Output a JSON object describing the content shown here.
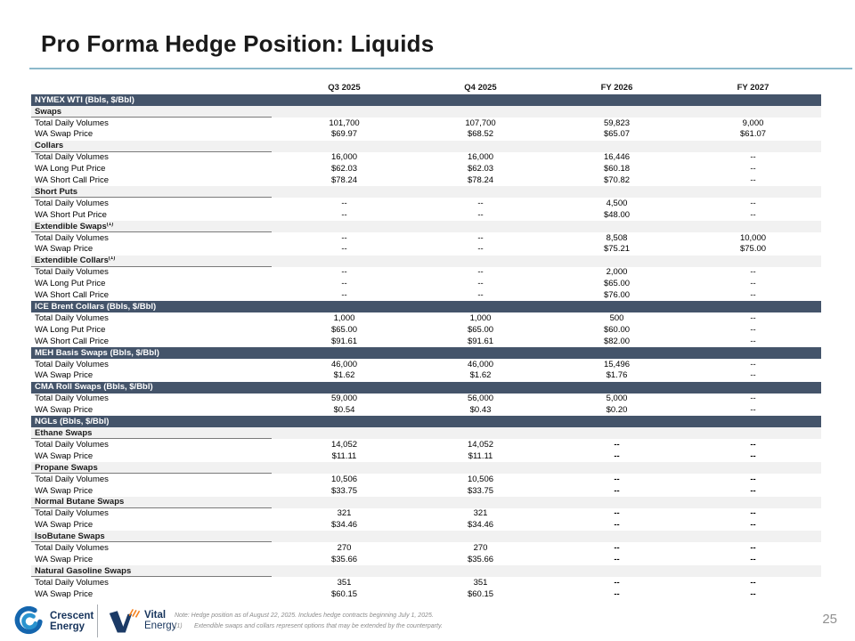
{
  "slide": {
    "title": "Pro Forma Hedge Position: Liquids",
    "page_number": "25",
    "accent_color": "#8cb9cb",
    "section_bar_color": "#44546A",
    "subheader_bg_color": "#f1f1f1"
  },
  "table": {
    "columns": [
      "Q3 2025",
      "Q4 2025",
      "FY 2026",
      "FY 2027"
    ],
    "rows": [
      {
        "type": "section",
        "label": "NYMEX WTI (Bbls, $/Bbl)"
      },
      {
        "type": "subheader",
        "label": "Swaps"
      },
      {
        "type": "data",
        "label": "Total Daily Volumes",
        "values": [
          "101,700",
          "107,700",
          "59,823",
          "9,000"
        ]
      },
      {
        "type": "data",
        "label": "WA Swap Price",
        "values": [
          "$69.97",
          "$68.52",
          "$65.07",
          "$61.07"
        ]
      },
      {
        "type": "subheader",
        "label": "Collars"
      },
      {
        "type": "data",
        "label": "Total Daily Volumes",
        "values": [
          "16,000",
          "16,000",
          "16,446",
          "--"
        ]
      },
      {
        "type": "data",
        "label": "WA Long Put Price",
        "values": [
          "$62.03",
          "$62.03",
          "$60.18",
          "--"
        ]
      },
      {
        "type": "data",
        "label": "WA Short Call Price",
        "values": [
          "$78.24",
          "$78.24",
          "$70.82",
          "--"
        ]
      },
      {
        "type": "subheader",
        "label": "Short Puts"
      },
      {
        "type": "data",
        "label": "Total Daily Volumes",
        "values": [
          "--",
          "--",
          "4,500",
          "--"
        ]
      },
      {
        "type": "data",
        "label": "WA Short Put Price",
        "values": [
          "--",
          "--",
          "$48.00",
          "--"
        ]
      },
      {
        "type": "subheader",
        "label": "Extendible Swaps",
        "sup": "(1)"
      },
      {
        "type": "data",
        "label": "Total Daily Volumes",
        "values": [
          "--",
          "--",
          "8,508",
          "10,000"
        ]
      },
      {
        "type": "data",
        "label": "WA Swap Price",
        "values": [
          "--",
          "--",
          "$75.21",
          "$75.00"
        ]
      },
      {
        "type": "subheader",
        "label": "Extendible Collars",
        "sup": "(1)"
      },
      {
        "type": "data",
        "label": "Total Daily Volumes",
        "values": [
          "--",
          "--",
          "2,000",
          "--"
        ]
      },
      {
        "type": "data",
        "label": "WA Long Put Price",
        "values": [
          "--",
          "--",
          "$65.00",
          "--"
        ]
      },
      {
        "type": "data",
        "label": "WA Short Call Price",
        "values": [
          "--",
          "--",
          "$76.00",
          "--"
        ]
      },
      {
        "type": "section",
        "label": "ICE Brent Collars (Bbls, $/Bbl)"
      },
      {
        "type": "data",
        "label": "Total Daily Volumes",
        "values": [
          "1,000",
          "1,000",
          "500",
          "--"
        ]
      },
      {
        "type": "data",
        "label": "WA Long Put Price",
        "values": [
          "$65.00",
          "$65.00",
          "$60.00",
          "--"
        ]
      },
      {
        "type": "data",
        "label": "WA Short Call Price",
        "values": [
          "$91.61",
          "$91.61",
          "$82.00",
          "--"
        ]
      },
      {
        "type": "section",
        "label": "MEH Basis Swaps (Bbls, $/Bbl)"
      },
      {
        "type": "data",
        "label": "Total Daily Volumes",
        "values": [
          "46,000",
          "46,000",
          "15,496",
          "--"
        ]
      },
      {
        "type": "data",
        "label": "WA Swap Price",
        "values": [
          "$1.62",
          "$1.62",
          "$1.76",
          "--"
        ]
      },
      {
        "type": "section",
        "label": "CMA Roll Swaps (Bbls, $/Bbl)"
      },
      {
        "type": "data",
        "label": "Total Daily Volumes",
        "values": [
          "59,000",
          "56,000",
          "5,000",
          "--"
        ]
      },
      {
        "type": "data",
        "label": "WA Swap Price",
        "values": [
          "$0.54",
          "$0.43",
          "$0.20",
          "--"
        ]
      },
      {
        "type": "section",
        "label": "NGLs (Bbls, $/Bbl)"
      },
      {
        "type": "subheader",
        "label": "Ethane Swaps"
      },
      {
        "type": "data",
        "label": "Total Daily Volumes",
        "values": [
          "14,052",
          "14,052",
          "--",
          "--"
        ],
        "bold_cols": [
          2,
          3
        ]
      },
      {
        "type": "data",
        "label": "WA Swap Price",
        "values": [
          "$11.11",
          "$11.11",
          "--",
          "--"
        ],
        "bold_cols": [
          2,
          3
        ]
      },
      {
        "type": "subheader",
        "label": "Propane Swaps"
      },
      {
        "type": "data",
        "label": "Total Daily Volumes",
        "values": [
          "10,506",
          "10,506",
          "--",
          "--"
        ],
        "bold_cols": [
          2,
          3
        ]
      },
      {
        "type": "data",
        "label": "WA Swap Price",
        "values": [
          "$33.75",
          "$33.75",
          "--",
          "--"
        ],
        "bold_cols": [
          2,
          3
        ]
      },
      {
        "type": "subheader",
        "label": "Normal Butane Swaps"
      },
      {
        "type": "data",
        "label": "Total Daily Volumes",
        "values": [
          "321",
          "321",
          "--",
          "--"
        ],
        "bold_cols": [
          2,
          3
        ]
      },
      {
        "type": "data",
        "label": "WA Swap Price",
        "values": [
          "$34.46",
          "$34.46",
          "--",
          "--"
        ],
        "bold_cols": [
          2,
          3
        ]
      },
      {
        "type": "subheader",
        "label": "IsoButane Swaps"
      },
      {
        "type": "data",
        "label": "Total Daily Volumes",
        "values": [
          "270",
          "270",
          "--",
          "--"
        ],
        "bold_cols": [
          2,
          3
        ]
      },
      {
        "type": "data",
        "label": "WA Swap Price",
        "values": [
          "$35.66",
          "$35.66",
          "--",
          "--"
        ],
        "bold_cols": [
          2,
          3
        ]
      },
      {
        "type": "subheader",
        "label": "Natural Gasoline Swaps"
      },
      {
        "type": "data",
        "label": "Total Daily Volumes",
        "values": [
          "351",
          "351",
          "--",
          "--"
        ],
        "bold_cols": [
          2,
          3
        ]
      },
      {
        "type": "data",
        "label": "WA Swap Price",
        "values": [
          "$60.15",
          "$60.15",
          "--",
          "--"
        ],
        "bold_cols": [
          2,
          3
        ]
      }
    ]
  },
  "footer": {
    "crescent_logo_line1": "Crescent",
    "crescent_logo_line2": "Energy",
    "vital_logo_line1": "Vital",
    "vital_logo_line2": "Energy",
    "note_line1": "Note: Hedge position as of August 22, 2025. Includes hedge contracts beginning July 1, 2025.",
    "note2_marker": "(1)",
    "note2_text": "Extendible swaps and collars represent options that may be extended by the counterparty."
  }
}
